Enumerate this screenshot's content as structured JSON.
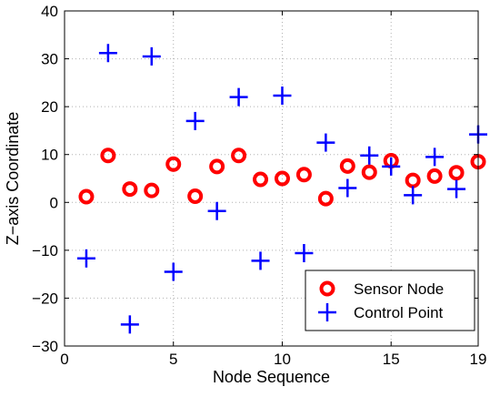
{
  "chart_data": {
    "type": "scatter",
    "xlabel": "Node Sequence",
    "ylabel": "Z−axis Coordinate",
    "xlim": [
      0,
      19
    ],
    "ylim": [
      -30,
      40
    ],
    "x_ticks": [
      0,
      5,
      10,
      15,
      19
    ],
    "x_tick_labels": [
      "0",
      "5",
      "10",
      "15",
      "19"
    ],
    "y_ticks": [
      -30,
      -20,
      -10,
      0,
      10,
      20,
      30,
      40
    ],
    "y_tick_labels": [
      "−30",
      "−20",
      "−10",
      "0",
      "10",
      "20",
      "30",
      "40"
    ],
    "grid": true,
    "legend_position": "bottom-right",
    "series": [
      {
        "name": "Sensor Node",
        "marker": "circle",
        "color": "#ff0000",
        "x": [
          1,
          2,
          3,
          4,
          5,
          6,
          7,
          8,
          9,
          10,
          11,
          12,
          13,
          14,
          15,
          16,
          17,
          18,
          19
        ],
        "y": [
          1.2,
          9.8,
          2.8,
          2.5,
          8.0,
          1.3,
          7.5,
          9.8,
          4.8,
          5.0,
          5.8,
          0.8,
          7.6,
          6.3,
          8.7,
          4.6,
          5.5,
          6.2,
          8.5
        ]
      },
      {
        "name": "Control Point",
        "marker": "plus",
        "color": "#0000ff",
        "x": [
          1,
          2,
          3,
          4,
          5,
          6,
          7,
          8,
          9,
          10,
          11,
          12,
          13,
          14,
          15,
          16,
          17,
          18,
          19
        ],
        "y": [
          -11.7,
          31.2,
          -25.5,
          30.5,
          -14.5,
          17.0,
          -1.8,
          22.0,
          -12.2,
          22.3,
          -10.6,
          12.5,
          3.0,
          9.8,
          7.5,
          1.5,
          9.5,
          2.8,
          14.2
        ]
      }
    ]
  }
}
